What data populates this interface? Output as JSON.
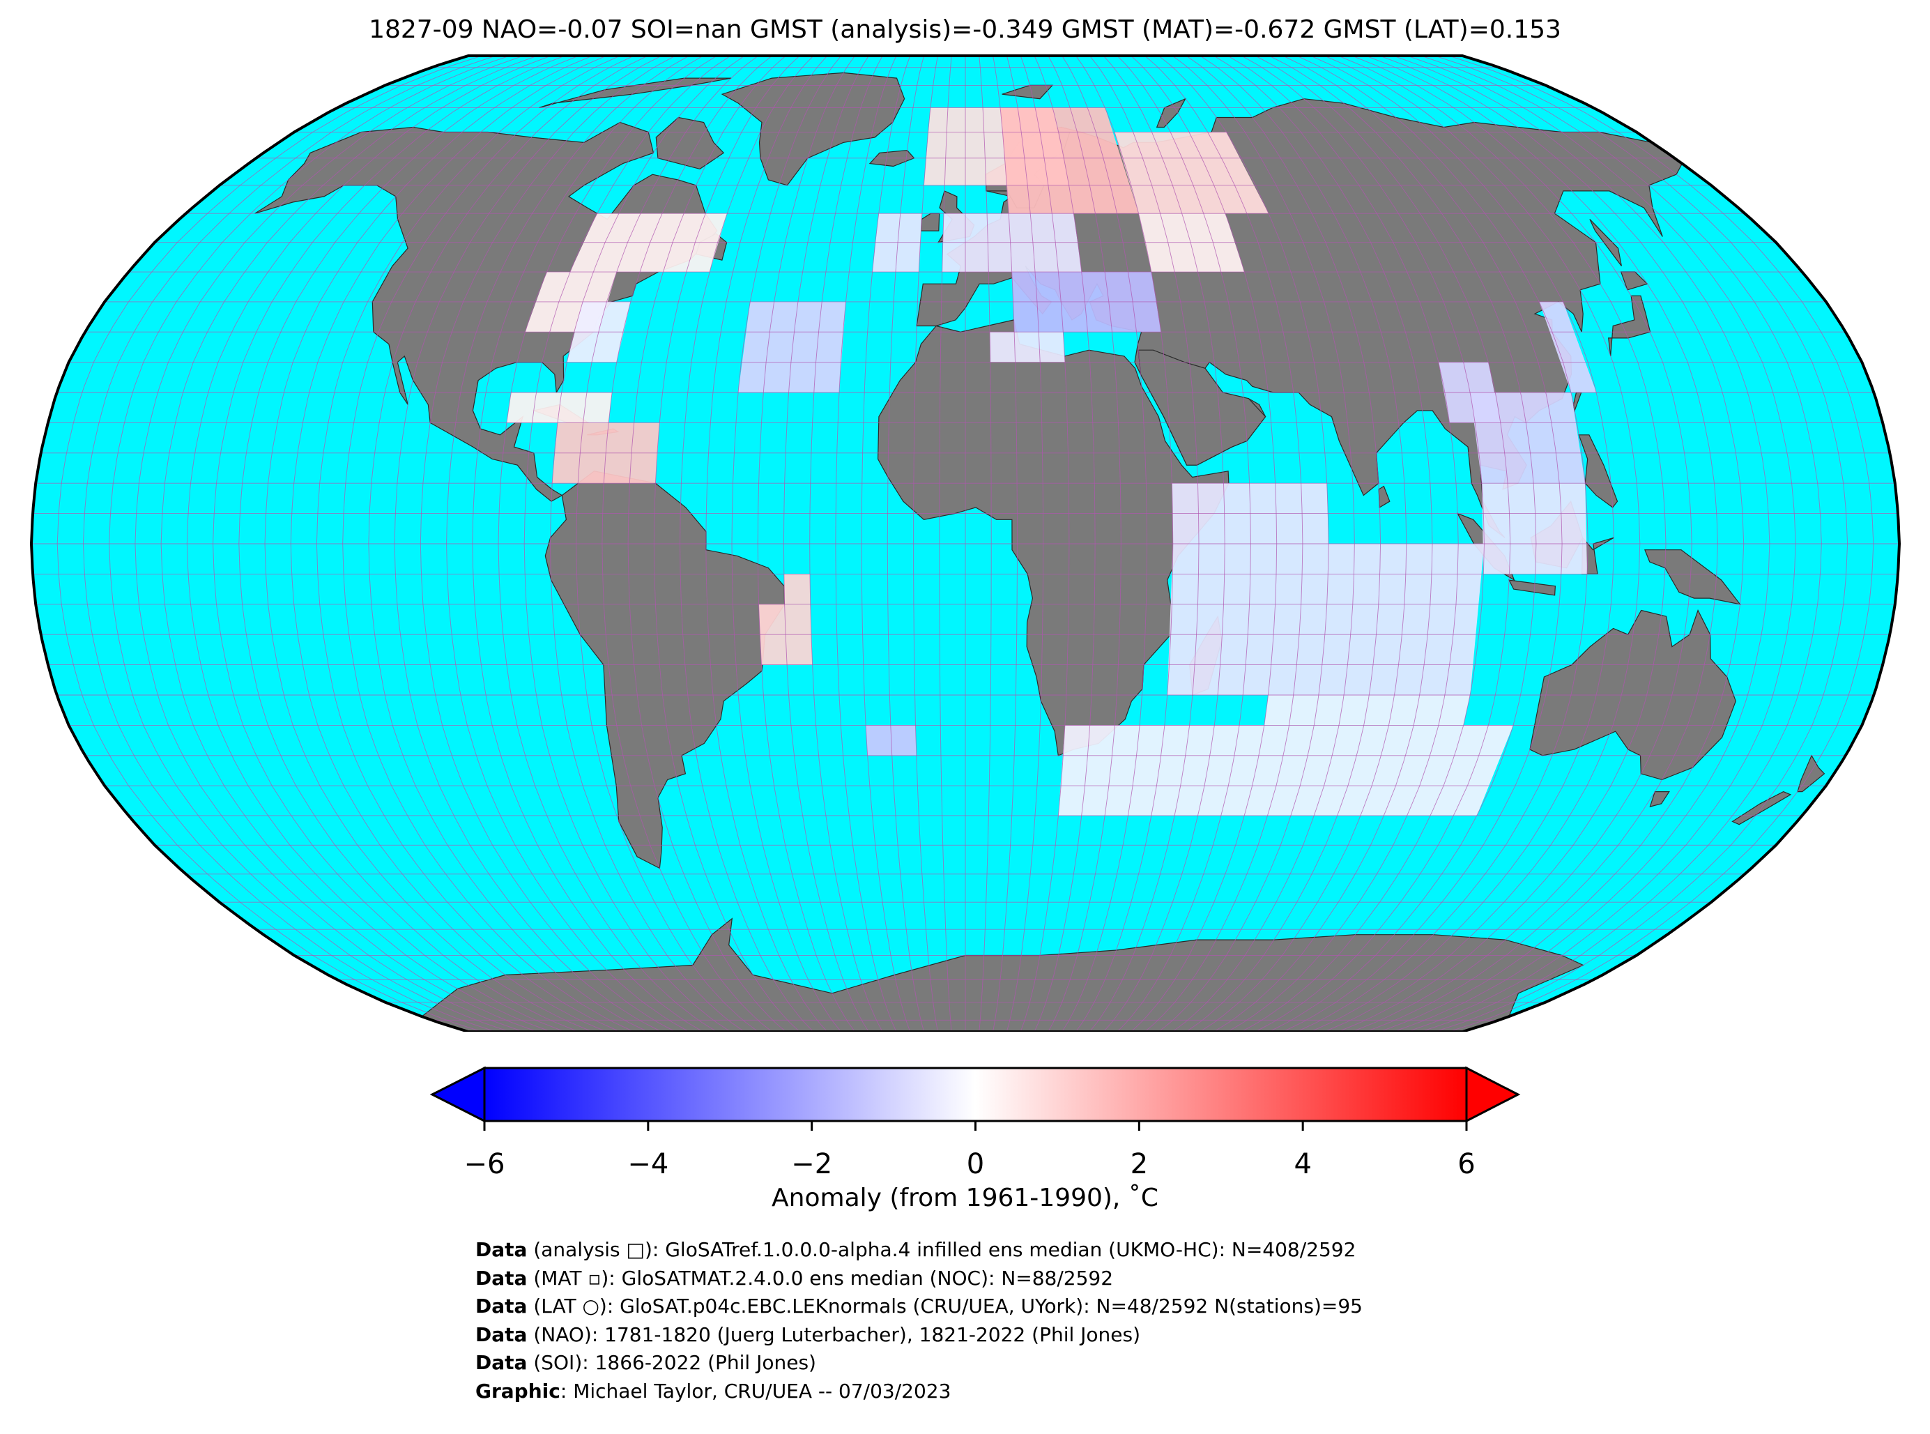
{
  "title": "1827-09 NAO=-0.07 SOI=nan GMST (analysis)=-0.349 GMST (MAT)=-0.672 GMST (LAT)=0.153",
  "map": {
    "projection": "Robinson",
    "ocean_color": "#00f7ff",
    "land_color": "#7a7a7a",
    "grid_color": "#b055b0",
    "outline_color": "#000000"
  },
  "colorbar": {
    "label": "Anomaly (from 1961-1990), ˚C",
    "min": -6,
    "max": 6,
    "ticks": [
      {
        "value": -6,
        "label": "−6"
      },
      {
        "value": -4,
        "label": "−4"
      },
      {
        "value": -2,
        "label": "−2"
      },
      {
        "value": 0,
        "label": "0"
      },
      {
        "value": 2,
        "label": "2"
      },
      {
        "value": 4,
        "label": "4"
      },
      {
        "value": 6,
        "label": "6"
      }
    ],
    "colors": [
      "#0000ff",
      "#ffffff",
      "#ff0000"
    ],
    "extend": "both"
  },
  "anomaly_cells": [
    {
      "region": "North Atlantic / Arctic",
      "value": 0.7
    },
    {
      "region": "Scandinavia",
      "value": 1.5
    },
    {
      "region": "Northern Russia",
      "value": 0.8
    },
    {
      "region": "Western Siberia",
      "value": 0.3
    },
    {
      "region": "Central Europe",
      "value": -0.6
    },
    {
      "region": "Balkans / Eastern Mediterranean",
      "value": -1.6
    },
    {
      "region": "North Africa coast",
      "value": -0.5
    },
    {
      "region": "Eastern North America",
      "value": 0.3
    },
    {
      "region": "US East Coast",
      "value": -0.4
    },
    {
      "region": "Mid Atlantic",
      "value": -1.0
    },
    {
      "region": "Caribbean",
      "value": 1.3
    },
    {
      "region": "Tropical South Atlantic",
      "value": 1.0
    },
    {
      "region": "Indian Ocean",
      "value": -0.6
    },
    {
      "region": "South China Sea",
      "value": -1.0
    },
    {
      "region": "Southern Ocean",
      "value": -0.3
    },
    {
      "region": "South Atlantic (west)",
      "value": -1.3
    }
  ],
  "credits": [
    {
      "bold": "Data",
      "text": " (analysis □): GloSATref.1.0.0.0-alpha.4 infilled ens median (UKMO-HC): N=408/2592"
    },
    {
      "bold": "Data",
      "text": " (MAT ▫): GloSATMAT.2.4.0.0 ens median (NOC): N=88/2592"
    },
    {
      "bold": "Data",
      "text": " (LAT ○): GloSAT.p04c.EBC.LEKnormals (CRU/UEA, UYork): N=48/2592 N(stations)=95"
    },
    {
      "bold": "Data",
      "text": " (NAO): 1781-1820 (Juerg Luterbacher), 1821-2022 (Phil Jones)"
    },
    {
      "bold": "Data",
      "text": " (SOI): 1866-2022 (Phil Jones)"
    },
    {
      "bold": "Graphic",
      "text": ": Michael Taylor, CRU/UEA -- 07/03/2023"
    }
  ]
}
